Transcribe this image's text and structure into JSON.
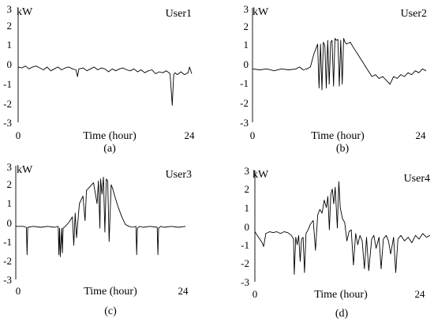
{
  "chart_data": [
    {
      "type": "line",
      "panel_label": "(a)",
      "series_label": "User1",
      "y_unit": "kW",
      "xlabel": "Time (hour)",
      "x_tick_labels": [
        "0",
        "24"
      ],
      "y_tick_labels": [
        "3",
        "2",
        "1",
        "0",
        "-1",
        "-2",
        "-3"
      ],
      "xlim": [
        0,
        24
      ],
      "ylim": [
        -3,
        3
      ],
      "grid": false,
      "series": [
        {
          "x": [
            0,
            0.5,
            1,
            1.5,
            2,
            2.5,
            3,
            3.5,
            4,
            4.5,
            5,
            5.5,
            6,
            6.5,
            7,
            7.5,
            8,
            8.2,
            8.4,
            9,
            9.5,
            10,
            10.5,
            11,
            11.5,
            12,
            12.5,
            13,
            13.5,
            14,
            14.5,
            15,
            15.5,
            16,
            16.5,
            17,
            17.5,
            18,
            18.5,
            19,
            19.5,
            20,
            20.5,
            21,
            21.3,
            21.5,
            21.7,
            22,
            22.5,
            23,
            23.5,
            23.7,
            24
          ],
          "y": [
            -0.1,
            -0.15,
            -0.05,
            -0.2,
            -0.1,
            -0.05,
            -0.15,
            -0.25,
            -0.1,
            -0.3,
            -0.2,
            -0.1,
            -0.25,
            -0.15,
            -0.1,
            -0.2,
            -0.25,
            -0.6,
            -0.2,
            -0.15,
            -0.3,
            -0.2,
            -0.1,
            -0.25,
            -0.15,
            -0.2,
            -0.35,
            -0.2,
            -0.3,
            -0.2,
            -0.15,
            -0.25,
            -0.3,
            -0.2,
            -0.35,
            -0.25,
            -0.4,
            -0.3,
            -0.25,
            -0.45,
            -0.35,
            -0.4,
            -0.3,
            -0.45,
            -2.1,
            -0.5,
            -0.4,
            -0.5,
            -0.35,
            -0.5,
            -0.4,
            -0.1,
            -0.45
          ]
        }
      ]
    },
    {
      "type": "line",
      "panel_label": "(b)",
      "series_label": "User2",
      "y_unit": "kW",
      "xlabel": "Time (hour)",
      "x_tick_labels": [
        "0",
        "24"
      ],
      "y_tick_labels": [
        "3",
        "2",
        "1",
        "0",
        "-1",
        "-2",
        "-3"
      ],
      "xlim": [
        0,
        24
      ],
      "ylim": [
        -3,
        3
      ],
      "grid": false,
      "series": [
        {
          "x": [
            0,
            1,
            2,
            3,
            4,
            5,
            6,
            6.5,
            7,
            7.5,
            8,
            8.5,
            8.8,
            9,
            9.2,
            9.4,
            9.6,
            9.8,
            10,
            10.2,
            10.4,
            10.6,
            10.8,
            11,
            11.2,
            11.4,
            11.6,
            11.8,
            12,
            12.2,
            12.4,
            12.6,
            12.8,
            13,
            13.5,
            14,
            14.5,
            15,
            15.5,
            16,
            16.5,
            17,
            17.5,
            18,
            18.5,
            19,
            19.5,
            20,
            20.5,
            21,
            21.5,
            22,
            22.5,
            23,
            23.5,
            24
          ],
          "y": [
            -0.2,
            -0.25,
            -0.2,
            -0.3,
            -0.2,
            -0.25,
            -0.2,
            -0.1,
            -0.25,
            -0.2,
            -0.1,
            0.6,
            0.9,
            1.1,
            -1.2,
            1.1,
            -1.3,
            1.2,
            1.0,
            -1.2,
            1.3,
            -1.0,
            1.2,
            1.3,
            -1.1,
            1.4,
            1.3,
            1.35,
            -1.1,
            1.3,
            -1.0,
            1.4,
            1.2,
            1.1,
            1.2,
            0.9,
            0.6,
            0.3,
            0.0,
            -0.3,
            -0.6,
            -0.5,
            -0.7,
            -0.6,
            -0.8,
            -1.0,
            -0.6,
            -0.7,
            -0.5,
            -0.6,
            -0.4,
            -0.5,
            -0.3,
            -0.4,
            -0.2,
            -0.3
          ]
        }
      ]
    },
    {
      "type": "line",
      "panel_label": "(c)",
      "series_label": "User3",
      "y_unit": "kW",
      "xlabel": "Time (hour)",
      "x_tick_labels": [
        "0",
        "24"
      ],
      "y_tick_labels": [
        "3",
        "2",
        "1",
        "0",
        "-1",
        "-2",
        "-3"
      ],
      "xlim": [
        0,
        24
      ],
      "ylim": [
        -3,
        3
      ],
      "grid": false,
      "series": [
        {
          "x": [
            0,
            1,
            1.5,
            1.6,
            1.7,
            2.5,
            3.5,
            4.5,
            5.5,
            6,
            6.1,
            6.2,
            6.3,
            6.5,
            6.6,
            6.7,
            7,
            7.5,
            8,
            8.2,
            8.4,
            8.6,
            9,
            9.5,
            9.8,
            10,
            10.5,
            11,
            11.5,
            11.7,
            11.9,
            12,
            12.2,
            12.4,
            12.6,
            12.8,
            13,
            13.2,
            13.5,
            13.7,
            14,
            14.5,
            15,
            15.5,
            16,
            16.5,
            17,
            17.1,
            17.2,
            17.5,
            18,
            19,
            20,
            20.1,
            20.2,
            20.5,
            21,
            22,
            23,
            24
          ],
          "y": [
            -0.2,
            -0.2,
            -0.25,
            -1.7,
            -0.25,
            -0.2,
            -0.25,
            -0.2,
            -0.25,
            -0.2,
            -1.7,
            -0.3,
            -1.8,
            -0.3,
            -1.6,
            -0.3,
            -0.2,
            0.0,
            0.3,
            -1.2,
            0.5,
            -0.8,
            1.0,
            1.4,
            0.1,
            1.7,
            1.9,
            2.1,
            1.0,
            2.2,
            -0.3,
            2.3,
            1.5,
            2.4,
            -0.5,
            2.3,
            2.2,
            -1.0,
            2.0,
            1.8,
            1.4,
            0.8,
            0.3,
            -0.1,
            -0.2,
            -0.25,
            -0.2,
            -1.7,
            -0.3,
            -0.2,
            -0.25,
            -0.2,
            -0.25,
            -1.7,
            -0.3,
            -0.2,
            -0.25,
            -0.2,
            -0.25,
            -0.2
          ]
        }
      ]
    },
    {
      "type": "line",
      "panel_label": "(d)",
      "series_label": "User4",
      "y_unit": "kW",
      "xlabel": "Time (hour)",
      "x_tick_labels": [
        "0",
        "24"
      ],
      "y_tick_labels": [
        "3",
        "2",
        "1",
        "0",
        "-1",
        "-2",
        "-3"
      ],
      "xlim": [
        0,
        24
      ],
      "ylim": [
        -3,
        3
      ],
      "grid": false,
      "series": [
        {
          "x": [
            0,
            0.5,
            1,
            1.2,
            1.5,
            2,
            2.5,
            3,
            3.5,
            4,
            4.5,
            5,
            5.3,
            5.4,
            5.6,
            5.8,
            6,
            6.2,
            6.4,
            6.6,
            6.8,
            7,
            7.3,
            7.6,
            8,
            8.3,
            8.6,
            8.9,
            9.2,
            9.5,
            9.8,
            10,
            10.2,
            10.4,
            10.6,
            10.8,
            11,
            11.3,
            11.5,
            11.7,
            12,
            12.3,
            12.6,
            12.9,
            13.2,
            13.5,
            13.8,
            14.1,
            14.4,
            14.7,
            15,
            15.3,
            15.6,
            16,
            16.3,
            16.6,
            17,
            17.3,
            17.6,
            18,
            18.3,
            18.6,
            19,
            19.3,
            19.6,
            20,
            20.5,
            21,
            21.5,
            22,
            22.5,
            23,
            23.5,
            24
          ],
          "y": [
            -0.3,
            -0.6,
            -0.9,
            -1.1,
            -0.4,
            -0.3,
            -0.35,
            -0.3,
            -0.4,
            -0.3,
            -0.35,
            -0.5,
            -0.7,
            -2.6,
            -0.6,
            -1.0,
            -0.5,
            -1.9,
            -0.7,
            -0.6,
            -2.5,
            -0.4,
            -0.2,
            0.1,
            0.3,
            -1.3,
            0.6,
            0.9,
            0.7,
            1.4,
            1.0,
            1.6,
            -0.2,
            1.7,
            2.0,
            1.2,
            2.1,
            -0.1,
            2.4,
            1.0,
            0.4,
            0.2,
            -0.8,
            -0.3,
            -0.2,
            -2.1,
            -0.4,
            -1.0,
            -0.5,
            -0.8,
            -2.3,
            -0.6,
            -2.4,
            -0.7,
            -0.5,
            -1.2,
            -0.6,
            -2.3,
            -0.7,
            -0.5,
            -0.8,
            -1.5,
            -0.6,
            -2.5,
            -0.7,
            -0.5,
            -0.8,
            -0.6,
            -0.9,
            -0.5,
            -0.7,
            -0.4,
            -0.6,
            -0.5
          ]
        }
      ]
    }
  ]
}
